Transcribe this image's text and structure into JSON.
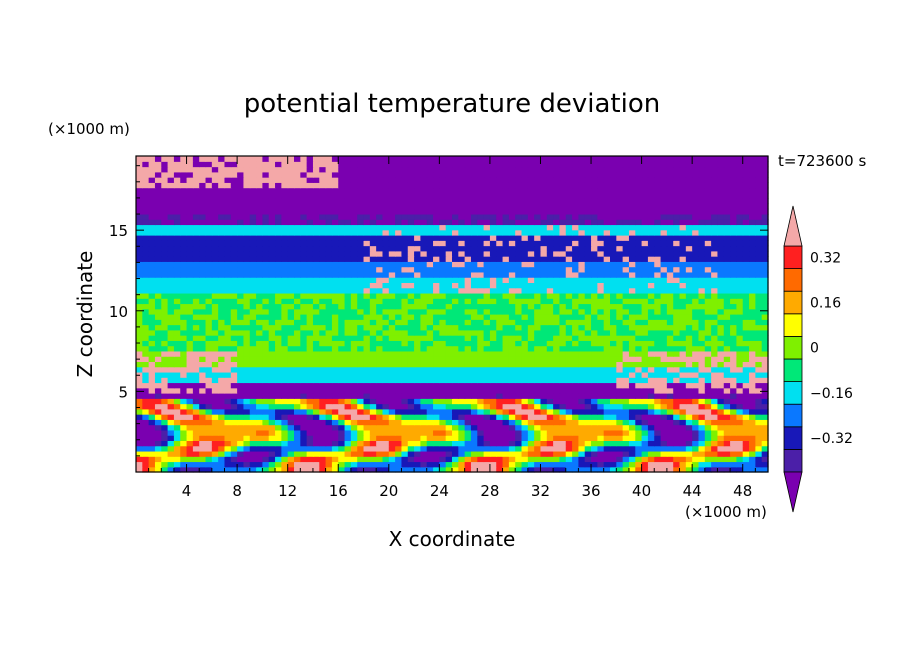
{
  "chart_data": {
    "type": "heatmap",
    "title": "potential temperature deviation",
    "xlabel": "X coordinate",
    "ylabel": "Z coordinate",
    "x_unit": "(×1000 m)",
    "y_unit": "(×1000 m)",
    "time_label": "t=723600 s",
    "xlim": [
      0,
      50
    ],
    "ylim": [
      0,
      19.6
    ],
    "x_ticks": [
      4,
      8,
      12,
      16,
      20,
      24,
      28,
      32,
      36,
      40,
      44,
      48
    ],
    "y_ticks": [
      5,
      10,
      15
    ],
    "colorbar": {
      "levels": [
        -0.4,
        -0.32,
        -0.24,
        -0.16,
        -0.08,
        0,
        0.08,
        0.16,
        0.24,
        0.32,
        0.4
      ],
      "tick_values": [
        -0.32,
        -0.16,
        0,
        0.16,
        0.32
      ],
      "tick_labels": [
        "−0.32",
        "−0.16",
        "0",
        "0.16",
        "0.32"
      ],
      "colors": [
        "#7a00b0",
        "#4b1fa8",
        "#1818b8",
        "#0a78ff",
        "#00e0f0",
        "#00e878",
        "#7ff000",
        "#ffff00",
        "#ffaa00",
        "#ff6a00",
        "#ff2020",
        "#f4a8a8"
      ],
      "extends": "both"
    },
    "regions": [
      {
        "z": [
          18.4,
          19.6
        ],
        "value": -0.5,
        "note": "upper layer, mixed pink/purple"
      },
      {
        "z": [
          16.0,
          18.4
        ],
        "value": -0.45
      },
      {
        "z": [
          15.3,
          16.0
        ],
        "value": -0.4
      },
      {
        "z": [
          14.8,
          15.3
        ],
        "value": -0.14
      },
      {
        "z": [
          13.0,
          14.8
        ],
        "value": -0.3
      },
      {
        "z": [
          12.0,
          13.0
        ],
        "value": -0.2
      },
      {
        "z": [
          11.0,
          12.0
        ],
        "value": -0.12
      },
      {
        "z": [
          6.5,
          11.0
        ],
        "value": 0.0
      },
      {
        "z": [
          5.5,
          6.5
        ],
        "value": -0.14
      },
      {
        "z": [
          4.5,
          5.5
        ],
        "value": -0.42
      },
      {
        "z": [
          0,
          4.5
        ],
        "value": 0.2,
        "note": "boundary layer, turbulent, alternating warm/cool"
      }
    ]
  }
}
